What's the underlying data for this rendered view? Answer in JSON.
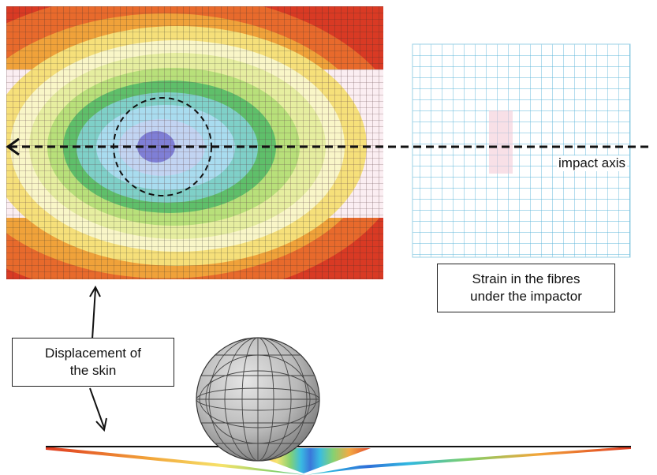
{
  "labels": {
    "impact_axis": "impact axis",
    "strain_line1": "Strain in the fibres",
    "strain_line2": "under the impactor",
    "skin_line1": "Displacement of",
    "skin_line2": "the skin"
  },
  "colors": {
    "contour_levels": [
      "#d93a24",
      "#e86a2c",
      "#f0a23a",
      "#f6e07a",
      "#f9f6c8",
      "#b8e07a",
      "#5fbf6a",
      "#7fd0c8",
      "#a9dcef",
      "#7f7fd6"
    ],
    "skin_band": "#fbeef2",
    "grid_line": "#2a2a2a",
    "fibre_grid": "#5ab4d8",
    "sphere": "#c9c9c9"
  }
}
